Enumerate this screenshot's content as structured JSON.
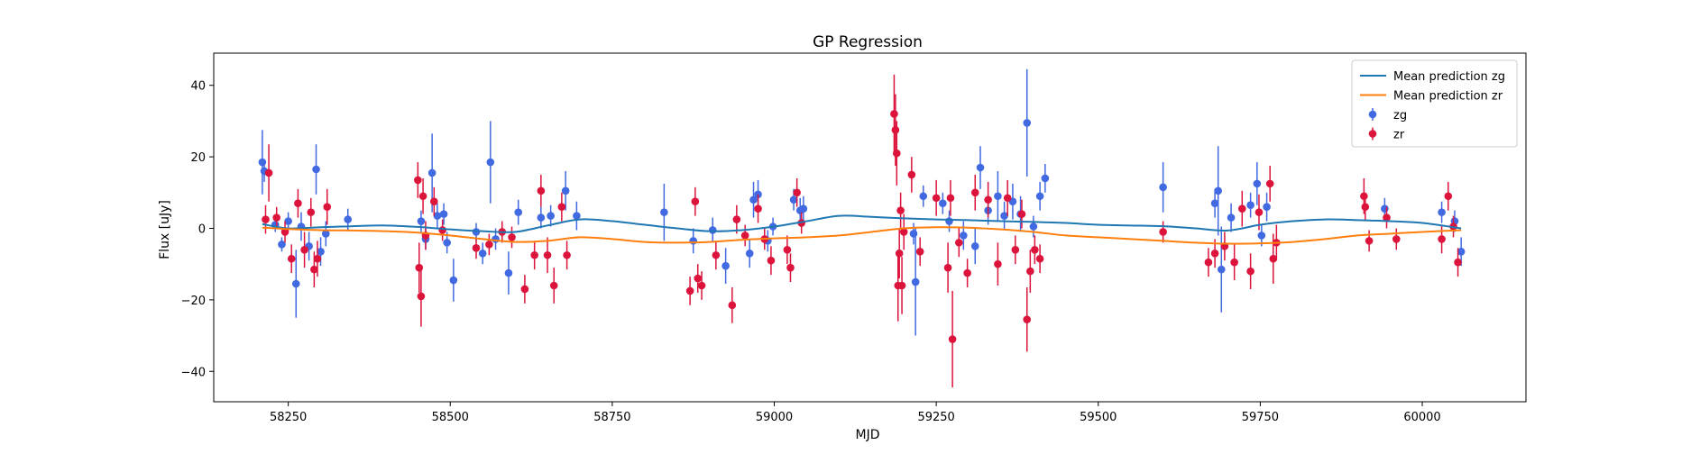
{
  "chart_data": {
    "type": "scatter",
    "title": "GP Regression",
    "xlabel": "MJD",
    "ylabel": "Flux [uJy]",
    "xlim": [
      58135,
      60160
    ],
    "ylim": [
      -48.5,
      49
    ],
    "x_ticks": [
      {
        "value": 58250,
        "label": "58250"
      },
      {
        "value": 58500,
        "label": "58500"
      },
      {
        "value": 58750,
        "label": "58750"
      },
      {
        "value": 59000,
        "label": "59000"
      },
      {
        "value": 59250,
        "label": "59250"
      },
      {
        "value": 59500,
        "label": "59500"
      },
      {
        "value": 59750,
        "label": "59750"
      },
      {
        "value": 60000,
        "label": "60000"
      }
    ],
    "y_ticks": [
      {
        "value": -40,
        "label": "−40"
      },
      {
        "value": -20,
        "label": "−20"
      },
      {
        "value": 0,
        "label": "0"
      },
      {
        "value": 20,
        "label": "20"
      },
      {
        "value": 40,
        "label": "40"
      }
    ],
    "grid": false,
    "legend_position": "top-right",
    "lines": [
      {
        "name": "Mean prediction zg",
        "color": "#1f77b4",
        "x": [
          58210,
          58250,
          58300,
          58350,
          58400,
          58450,
          58500,
          58550,
          58600,
          58650,
          58700,
          58750,
          58800,
          58850,
          58900,
          58950,
          59000,
          59050,
          59100,
          59150,
          59200,
          59250,
          59300,
          59350,
          59400,
          59450,
          59500,
          59550,
          59600,
          59650,
          59700,
          59750,
          59800,
          59850,
          59900,
          59950,
          60000,
          60060
        ],
        "y": [
          1.2,
          0.0,
          0.3,
          0.6,
          0.8,
          0.4,
          -0.3,
          -0.8,
          -1.0,
          0.8,
          2.5,
          2.0,
          1.0,
          0.0,
          -0.8,
          -0.5,
          0.5,
          2.0,
          3.5,
          3.2,
          2.8,
          2.5,
          2.3,
          2.0,
          1.8,
          1.5,
          1.0,
          0.8,
          0.6,
          0.0,
          -0.6,
          1.0,
          2.0,
          2.5,
          2.3,
          2.0,
          1.5,
          0.0
        ]
      },
      {
        "name": "Mean prediction zr",
        "color": "#ff7f0e",
        "x": [
          58210,
          58250,
          58300,
          58350,
          58400,
          58450,
          58500,
          58550,
          58600,
          58650,
          58700,
          58750,
          58800,
          58850,
          58900,
          58950,
          59000,
          59050,
          59100,
          59150,
          59200,
          59250,
          59300,
          59350,
          59400,
          59450,
          59500,
          59550,
          59600,
          59650,
          59700,
          59750,
          59800,
          59850,
          59900,
          59950,
          60000,
          60060
        ],
        "y": [
          0.2,
          -0.2,
          -0.5,
          -0.6,
          -0.8,
          -1.2,
          -2.0,
          -3.0,
          -3.8,
          -3.5,
          -2.5,
          -3.0,
          -3.8,
          -4.0,
          -3.8,
          -3.2,
          -2.8,
          -2.5,
          -2.0,
          -1.0,
          0.0,
          0.3,
          0.2,
          -0.3,
          -1.0,
          -2.0,
          -2.5,
          -3.0,
          -3.5,
          -4.0,
          -4.3,
          -4.2,
          -3.8,
          -3.0,
          -2.0,
          -1.5,
          -1.0,
          -0.5
        ]
      }
    ],
    "series": [
      {
        "name": "zg",
        "color": "#4169e1",
        "points": [
          {
            "x": 58210,
            "y": 18.5,
            "err": 9.0
          },
          {
            "x": 58213,
            "y": 16.0,
            "err": 3.0
          },
          {
            "x": 58230,
            "y": 1.0,
            "err": 2.0
          },
          {
            "x": 58240,
            "y": -4.5,
            "err": 2.0
          },
          {
            "x": 58250,
            "y": 2.0,
            "err": 2.5
          },
          {
            "x": 58262,
            "y": -15.5,
            "err": 9.5
          },
          {
            "x": 58270,
            "y": 0.5,
            "err": 4.0
          },
          {
            "x": 58282,
            "y": -5.0,
            "err": 4.0
          },
          {
            "x": 58293,
            "y": 16.5,
            "err": 7.0
          },
          {
            "x": 58300,
            "y": -6.5,
            "err": 4.0
          },
          {
            "x": 58308,
            "y": -1.5,
            "err": 3.5
          },
          {
            "x": 58342,
            "y": 2.5,
            "err": 3.0
          },
          {
            "x": 58455,
            "y": 2.0,
            "err": 3.0
          },
          {
            "x": 58462,
            "y": -3.0,
            "err": 3.0
          },
          {
            "x": 58472,
            "y": 15.5,
            "err": 11.0
          },
          {
            "x": 58480,
            "y": 3.5,
            "err": 3.5
          },
          {
            "x": 58490,
            "y": 4.0,
            "err": 3.0
          },
          {
            "x": 58495,
            "y": -4.0,
            "err": 3.0
          },
          {
            "x": 58505,
            "y": -14.5,
            "err": 6.0
          },
          {
            "x": 58540,
            "y": -1.0,
            "err": 2.5
          },
          {
            "x": 58550,
            "y": -7.0,
            "err": 3.0
          },
          {
            "x": 58562,
            "y": 18.5,
            "err": 11.5
          },
          {
            "x": 58570,
            "y": -3.0,
            "err": 3.0
          },
          {
            "x": 58590,
            "y": -12.5,
            "err": 6.0
          },
          {
            "x": 58605,
            "y": 4.5,
            "err": 3.5
          },
          {
            "x": 58640,
            "y": 3.0,
            "err": 3.0
          },
          {
            "x": 58655,
            "y": 3.5,
            "err": 3.0
          },
          {
            "x": 58678,
            "y": 10.5,
            "err": 5.5
          },
          {
            "x": 58695,
            "y": 3.5,
            "err": 4.0
          },
          {
            "x": 58830,
            "y": 4.5,
            "err": 8.0
          },
          {
            "x": 58875,
            "y": -3.5,
            "err": 3.5
          },
          {
            "x": 58905,
            "y": -0.5,
            "err": 3.5
          },
          {
            "x": 58925,
            "y": -10.5,
            "err": 5.0
          },
          {
            "x": 58962,
            "y": -7.0,
            "err": 4.0
          },
          {
            "x": 58968,
            "y": 8.0,
            "err": 5.0
          },
          {
            "x": 58975,
            "y": 9.5,
            "err": 4.0
          },
          {
            "x": 58990,
            "y": -3.5,
            "err": 3.0
          },
          {
            "x": 58998,
            "y": 0.5,
            "err": 2.5
          },
          {
            "x": 59030,
            "y": 8.0,
            "err": 3.0
          },
          {
            "x": 59040,
            "y": 5.0,
            "err": 3.5
          },
          {
            "x": 59045,
            "y": 5.5,
            "err": 3.5
          },
          {
            "x": 59215,
            "y": -1.5,
            "err": 3.0
          },
          {
            "x": 59218,
            "y": -15.0,
            "err": 15.0
          },
          {
            "x": 59230,
            "y": 9.0,
            "err": 3.0
          },
          {
            "x": 59260,
            "y": 7.0,
            "err": 3.0
          },
          {
            "x": 59270,
            "y": 2.0,
            "err": 3.0
          },
          {
            "x": 59292,
            "y": -2.0,
            "err": 4.0
          },
          {
            "x": 59310,
            "y": -5.0,
            "err": 5.0
          },
          {
            "x": 59318,
            "y": 17.0,
            "err": 6.0
          },
          {
            "x": 59330,
            "y": 5.0,
            "err": 4.0
          },
          {
            "x": 59345,
            "y": 9.0,
            "err": 7.0
          },
          {
            "x": 59355,
            "y": 3.5,
            "err": 4.0
          },
          {
            "x": 59368,
            "y": 7.5,
            "err": 5.0
          },
          {
            "x": 59380,
            "y": 4.0,
            "err": 5.0
          },
          {
            "x": 59390,
            "y": 29.5,
            "err": 15.0
          },
          {
            "x": 59400,
            "y": 0.5,
            "err": 3.0
          },
          {
            "x": 59410,
            "y": 9.0,
            "err": 4.0
          },
          {
            "x": 59418,
            "y": 14.0,
            "err": 4.0
          },
          {
            "x": 59600,
            "y": 11.5,
            "err": 7.0
          },
          {
            "x": 59680,
            "y": 7.0,
            "err": 4.0
          },
          {
            "x": 59685,
            "y": 10.5,
            "err": 12.5
          },
          {
            "x": 59690,
            "y": -11.5,
            "err": 12.0
          },
          {
            "x": 59705,
            "y": 3.0,
            "err": 4.0
          },
          {
            "x": 59735,
            "y": 6.5,
            "err": 3.5
          },
          {
            "x": 59745,
            "y": 12.5,
            "err": 6.0
          },
          {
            "x": 59752,
            "y": -2.0,
            "err": 3.0
          },
          {
            "x": 59760,
            "y": 6.0,
            "err": 4.0
          },
          {
            "x": 59942,
            "y": 5.5,
            "err": 3.0
          },
          {
            "x": 60030,
            "y": 4.5,
            "err": 3.0
          },
          {
            "x": 60050,
            "y": 2.0,
            "err": 3.0
          },
          {
            "x": 60060,
            "y": -6.5,
            "err": 4.0
          }
        ]
      },
      {
        "name": "zr",
        "color": "#dc143c",
        "points": [
          {
            "x": 58215,
            "y": 2.5,
            "err": 4.0
          },
          {
            "x": 58220,
            "y": 15.5,
            "err": 8.0
          },
          {
            "x": 58232,
            "y": 3.0,
            "err": 3.0
          },
          {
            "x": 58245,
            "y": -1.0,
            "err": 3.0
          },
          {
            "x": 58255,
            "y": -8.5,
            "err": 4.0
          },
          {
            "x": 58265,
            "y": 7.0,
            "err": 4.0
          },
          {
            "x": 58275,
            "y": -6.0,
            "err": 5.0
          },
          {
            "x": 58285,
            "y": 4.5,
            "err": 4.0
          },
          {
            "x": 58290,
            "y": -11.5,
            "err": 5.0
          },
          {
            "x": 58295,
            "y": -8.5,
            "err": 5.0
          },
          {
            "x": 58310,
            "y": 6.0,
            "err": 5.0
          },
          {
            "x": 58450,
            "y": 13.5,
            "err": 5.0
          },
          {
            "x": 58452,
            "y": -11.0,
            "err": 7.0
          },
          {
            "x": 58455,
            "y": -19.0,
            "err": 8.5
          },
          {
            "x": 58458,
            "y": 9.0,
            "err": 5.0
          },
          {
            "x": 58462,
            "y": -2.0,
            "err": 4.0
          },
          {
            "x": 58475,
            "y": 7.5,
            "err": 4.0
          },
          {
            "x": 58488,
            "y": -0.5,
            "err": 3.0
          },
          {
            "x": 58540,
            "y": -5.5,
            "err": 3.0
          },
          {
            "x": 58560,
            "y": -4.5,
            "err": 3.0
          },
          {
            "x": 58580,
            "y": -1.0,
            "err": 3.0
          },
          {
            "x": 58595,
            "y": -2.5,
            "err": 3.0
          },
          {
            "x": 58615,
            "y": -17.0,
            "err": 4.0
          },
          {
            "x": 58630,
            "y": -7.5,
            "err": 4.0
          },
          {
            "x": 58640,
            "y": 10.5,
            "err": 4.5
          },
          {
            "x": 58650,
            "y": -7.5,
            "err": 5.0
          },
          {
            "x": 58660,
            "y": -16.0,
            "err": 5.0
          },
          {
            "x": 58672,
            "y": 6.0,
            "err": 4.0
          },
          {
            "x": 58680,
            "y": -7.5,
            "err": 4.0
          },
          {
            "x": 58870,
            "y": -17.5,
            "err": 4.0
          },
          {
            "x": 58878,
            "y": 7.5,
            "err": 4.0
          },
          {
            "x": 58882,
            "y": -14.0,
            "err": 4.0
          },
          {
            "x": 58888,
            "y": -16.0,
            "err": 4.0
          },
          {
            "x": 58910,
            "y": -7.5,
            "err": 4.0
          },
          {
            "x": 58935,
            "y": -21.5,
            "err": 5.0
          },
          {
            "x": 58942,
            "y": 2.5,
            "err": 4.0
          },
          {
            "x": 58955,
            "y": -2.0,
            "err": 3.0
          },
          {
            "x": 58975,
            "y": 5.5,
            "err": 4.0
          },
          {
            "x": 58985,
            "y": -3.0,
            "err": 3.0
          },
          {
            "x": 58995,
            "y": -9.0,
            "err": 4.0
          },
          {
            "x": 59020,
            "y": -6.0,
            "err": 4.0
          },
          {
            "x": 59025,
            "y": -11.0,
            "err": 4.0
          },
          {
            "x": 59035,
            "y": 10.0,
            "err": 4.0
          },
          {
            "x": 59042,
            "y": 1.5,
            "err": 3.0
          },
          {
            "x": 59185,
            "y": 32.0,
            "err": 11.0
          },
          {
            "x": 59187,
            "y": 27.5,
            "err": 10.0
          },
          {
            "x": 59189,
            "y": 21.0,
            "err": 9.0
          },
          {
            "x": 59191,
            "y": -16.0,
            "err": 10.0
          },
          {
            "x": 59193,
            "y": -7.0,
            "err": 7.0
          },
          {
            "x": 59195,
            "y": 5.0,
            "err": 5.0
          },
          {
            "x": 59197,
            "y": -16.0,
            "err": 8.0
          },
          {
            "x": 59200,
            "y": -1.0,
            "err": 5.0
          },
          {
            "x": 59212,
            "y": 15.0,
            "err": 5.0
          },
          {
            "x": 59225,
            "y": -6.5,
            "err": 4.0
          },
          {
            "x": 59250,
            "y": 8.5,
            "err": 5.0
          },
          {
            "x": 59268,
            "y": -11.0,
            "err": 7.0
          },
          {
            "x": 59272,
            "y": 8.5,
            "err": 5.0
          },
          {
            "x": 59275,
            "y": -31.0,
            "err": 13.5
          },
          {
            "x": 59285,
            "y": -4.0,
            "err": 4.0
          },
          {
            "x": 59298,
            "y": -12.5,
            "err": 4.0
          },
          {
            "x": 59310,
            "y": 10.0,
            "err": 5.0
          },
          {
            "x": 59330,
            "y": 8.0,
            "err": 5.0
          },
          {
            "x": 59345,
            "y": -10.0,
            "err": 6.0
          },
          {
            "x": 59360,
            "y": 8.5,
            "err": 5.0
          },
          {
            "x": 59372,
            "y": -6.0,
            "err": 4.0
          },
          {
            "x": 59382,
            "y": 4.0,
            "err": 4.0
          },
          {
            "x": 59390,
            "y": -25.5,
            "err": 9.0
          },
          {
            "x": 59395,
            "y": -12.0,
            "err": 6.0
          },
          {
            "x": 59402,
            "y": -6.0,
            "err": 4.0
          },
          {
            "x": 59410,
            "y": -8.5,
            "err": 4.0
          },
          {
            "x": 59600,
            "y": -1.0,
            "err": 3.0
          },
          {
            "x": 59670,
            "y": -9.5,
            "err": 4.0
          },
          {
            "x": 59680,
            "y": -7.0,
            "err": 4.0
          },
          {
            "x": 59695,
            "y": -5.0,
            "err": 4.0
          },
          {
            "x": 59710,
            "y": -9.5,
            "err": 5.0
          },
          {
            "x": 59722,
            "y": 5.5,
            "err": 5.0
          },
          {
            "x": 59735,
            "y": -12.0,
            "err": 5.0
          },
          {
            "x": 59748,
            "y": 4.5,
            "err": 5.0
          },
          {
            "x": 59765,
            "y": 12.5,
            "err": 5.0
          },
          {
            "x": 59770,
            "y": -8.5,
            "err": 7.0
          },
          {
            "x": 59775,
            "y": -4.0,
            "err": 5.0
          },
          {
            "x": 59910,
            "y": 9.0,
            "err": 5.0
          },
          {
            "x": 59912,
            "y": 6.0,
            "err": 4.0
          },
          {
            "x": 59918,
            "y": -3.5,
            "err": 3.0
          },
          {
            "x": 59945,
            "y": 3.0,
            "err": 3.0
          },
          {
            "x": 59960,
            "y": -3.0,
            "err": 3.0
          },
          {
            "x": 60030,
            "y": -3.0,
            "err": 4.0
          },
          {
            "x": 60040,
            "y": 9.0,
            "err": 4.0
          },
          {
            "x": 60048,
            "y": 0.5,
            "err": 3.0
          },
          {
            "x": 60055,
            "y": -9.5,
            "err": 4.0
          }
        ]
      }
    ]
  }
}
